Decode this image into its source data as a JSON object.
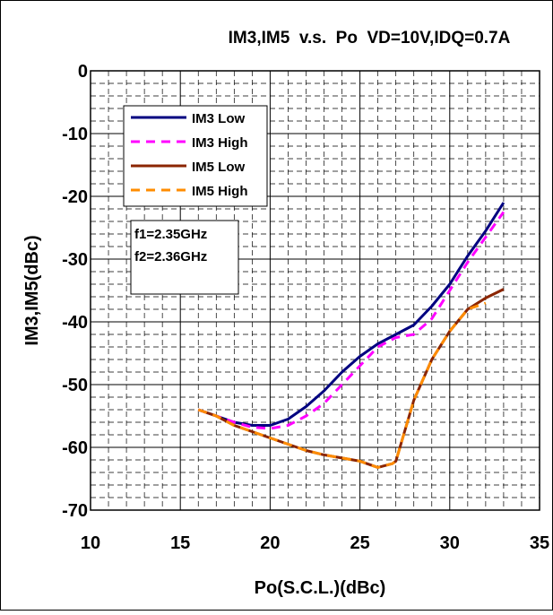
{
  "chart_data": {
    "type": "line",
    "title": "IM3,IM5  v.s.  Po  VD=10V,IDQ=0.7A",
    "xlabel": "Po(S.C.L.)(dBc)",
    "ylabel": "IM3,IM5(dBc)",
    "xlim": [
      10,
      35
    ],
    "ylim": [
      -70,
      0
    ],
    "xticks": [
      10,
      15,
      20,
      25,
      30,
      35
    ],
    "yticks": [
      0,
      -10,
      -20,
      -30,
      -40,
      -50,
      -60,
      -70
    ],
    "grid": true,
    "legend_position": "top-left",
    "annotation": [
      "f1=2.35GHz",
      "f2=2.36GHz"
    ],
    "series": [
      {
        "name": "IM3 Low",
        "color": "#000080",
        "dash": "solid",
        "x": [
          16,
          17,
          18,
          19,
          20,
          21,
          22,
          23,
          24,
          25,
          26,
          27,
          28,
          29,
          30,
          31,
          32,
          33
        ],
        "y": [
          -54,
          -55,
          -56,
          -56.5,
          -56.5,
          -55.5,
          -53.5,
          -51,
          -48,
          -45.5,
          -43.5,
          -42,
          -40.5,
          -37.5,
          -34,
          -29.5,
          -25.5,
          -21
        ]
      },
      {
        "name": "IM3 High",
        "color": "#ff00ff",
        "dash": "dashed",
        "x": [
          16,
          17,
          18,
          19,
          20,
          21,
          22,
          23,
          24,
          25,
          26,
          27,
          28,
          29,
          30,
          31,
          32,
          33
        ],
        "y": [
          -54,
          -55,
          -56,
          -56.8,
          -57,
          -56.5,
          -55,
          -53,
          -50,
          -47,
          -44,
          -42.5,
          -42,
          -39.5,
          -35,
          -30.5,
          -26.5,
          -22.5
        ]
      },
      {
        "name": "IM5 Low",
        "color": "#8b2500",
        "dash": "solid",
        "x": [
          16,
          17,
          18,
          19,
          20,
          21,
          22,
          23,
          24,
          25,
          26,
          26.8,
          27,
          28,
          29,
          30,
          31,
          32,
          33
        ],
        "y": [
          -54,
          -55,
          -56.5,
          -57.5,
          -58.5,
          -59.5,
          -60.5,
          -61.2,
          -61.7,
          -62.2,
          -63.2,
          -62.6,
          -62.2,
          -52.5,
          -46,
          -41.5,
          -38,
          -36.2,
          -34.8
        ]
      },
      {
        "name": "IM5 High",
        "color": "#ff8c00",
        "dash": "dashed",
        "x": [
          16,
          17,
          18,
          19,
          20,
          21,
          22,
          23,
          24,
          25,
          26,
          26.8,
          27,
          28,
          29,
          30,
          31,
          32
        ],
        "y": [
          -54,
          -55,
          -56.5,
          -57.5,
          -58.5,
          -59.5,
          -60.5,
          -61.2,
          -61.7,
          -62.2,
          -63.2,
          -62.6,
          -62.2,
          -52.5,
          -46,
          -41.5,
          -38,
          -37
        ]
      }
    ]
  }
}
